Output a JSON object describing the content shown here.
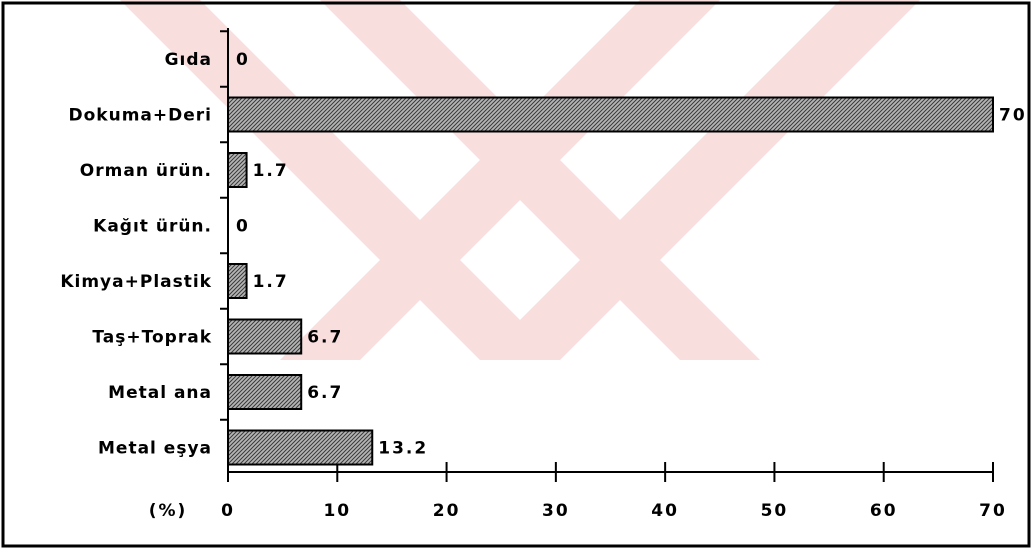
{
  "chart_data": {
    "type": "bar",
    "orientation": "horizontal",
    "categories": [
      "Gıda",
      "Dokuma+Deri",
      "Orman ürün.",
      "Kağıt ürün.",
      "Kimya+Plastik",
      "Taş+Toprak",
      "Metal ana",
      "Metal eşya"
    ],
    "values": [
      0,
      70,
      1.7,
      0,
      1.7,
      6.7,
      6.7,
      13.2
    ],
    "value_labels": [
      "0",
      "70",
      "1.7",
      "0",
      "1.7",
      "6.7",
      "6.7",
      "13.2"
    ],
    "title": "",
    "xlabel": "(%)",
    "ylabel": "",
    "xlim": [
      0,
      70
    ],
    "x_ticks": [
      0,
      10,
      20,
      30,
      40,
      50,
      60,
      70
    ],
    "x_tick_labels": [
      "0",
      "10",
      "20",
      "30",
      "40",
      "50",
      "60",
      "70"
    ],
    "grid": false,
    "colors": {
      "bar_fill": "#9a9a9a",
      "bar_stroke": "#000000",
      "watermark": "#f7d6d6",
      "border": "#000000"
    }
  }
}
